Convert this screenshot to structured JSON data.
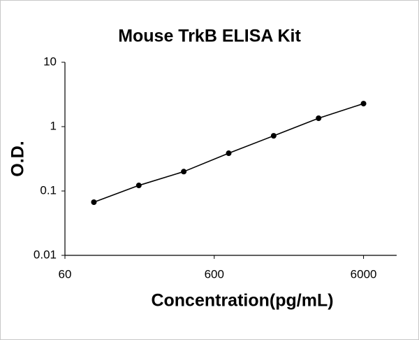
{
  "chart_data": {
    "type": "scatter",
    "title": "Mouse TrkB ELISA Kit",
    "x_label": "Concentration(pg/mL)",
    "y_label": "O.D.",
    "x": [
      93.75,
      187.5,
      375,
      750,
      1500,
      3000,
      6000
    ],
    "values": [
      0.067,
      0.122,
      0.2,
      0.386,
      0.72,
      1.35,
      2.28
    ],
    "color": "#000000",
    "line": true,
    "xscale": "log",
    "yscale": "log",
    "xlim": [
      60,
      10000
    ],
    "ylim": [
      0.01,
      10
    ],
    "xticks": [
      60,
      600,
      6000
    ],
    "yticks": [
      0.01,
      0.1,
      1,
      10
    ],
    "grid": false
  }
}
